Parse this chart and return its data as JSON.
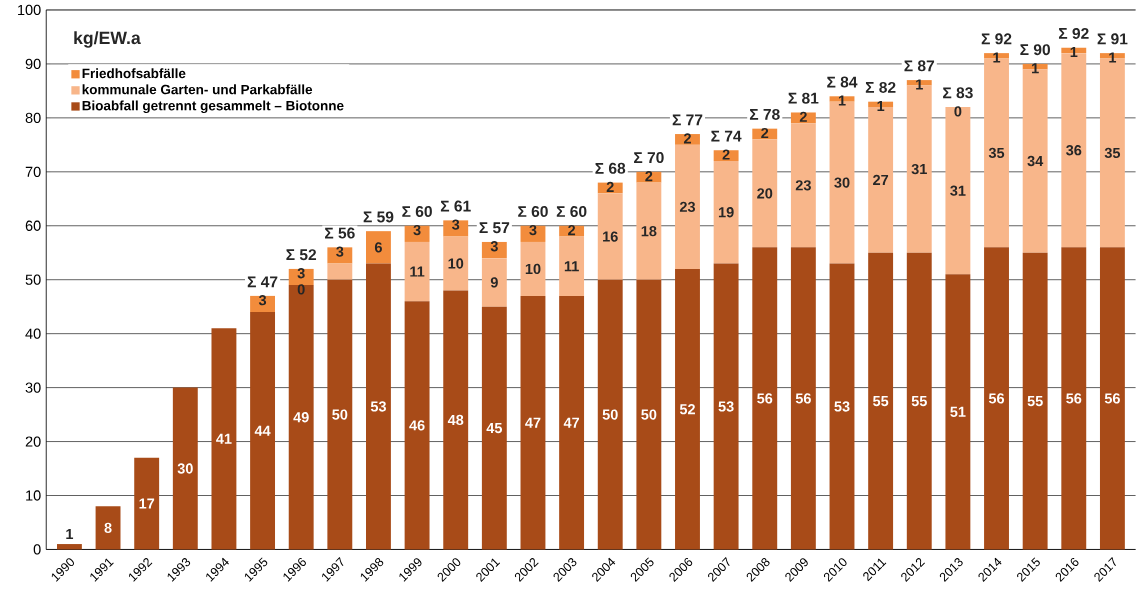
{
  "chart_data": {
    "type": "bar",
    "stacked": true,
    "ylabel": "kg/EW.a",
    "categories": [
      "1990",
      "1991",
      "1992",
      "1993",
      "1994",
      "1995",
      "1996",
      "1997",
      "1998",
      "1999",
      "2000",
      "2001",
      "2002",
      "2003",
      "2004",
      "2005",
      "2006",
      "2007",
      "2008",
      "2009",
      "2010",
      "2011",
      "2012",
      "2013",
      "2014",
      "2015",
      "2016",
      "2017"
    ],
    "series": [
      {
        "name": "Bioabfall getrennt gesammelt – Biotonne",
        "color": "#a84b18",
        "values": [
          1,
          8,
          17,
          30,
          41,
          44,
          49,
          50,
          53,
          46,
          48,
          45,
          47,
          47,
          50,
          50,
          52,
          53,
          56,
          56,
          53,
          55,
          55,
          51,
          56,
          55,
          56,
          56
        ],
        "value_labels": [
          "1",
          "8",
          "17",
          "30",
          "41",
          "44",
          "49",
          "50",
          "53",
          "46",
          "48",
          "45",
          "47",
          "47",
          "50",
          "50",
          "52",
          "53",
          "56",
          "56",
          "53",
          "55",
          "55",
          "51",
          "56",
          "55",
          "56",
          "56"
        ]
      },
      {
        "name": "kommunale Garten- und Parkabfälle",
        "color": "#f8b68a",
        "values": [
          null,
          null,
          null,
          null,
          null,
          null,
          0,
          3,
          null,
          11,
          10,
          9,
          10,
          11,
          16,
          18,
          23,
          19,
          20,
          23,
          30,
          27,
          31,
          31,
          35,
          34,
          36,
          35
        ],
        "value_labels": [
          null,
          null,
          null,
          null,
          null,
          null,
          "0",
          null,
          null,
          "11",
          "10",
          "9",
          "10",
          "11",
          "16",
          "18",
          "23",
          "19",
          "20",
          "23",
          "30",
          "27",
          "31",
          "31",
          "35",
          "34",
          "36",
          "35"
        ]
      },
      {
        "name": "Friedhofsabfälle",
        "color": "#f28c3c",
        "values": [
          null,
          null,
          null,
          null,
          null,
          3,
          3,
          3,
          6,
          3,
          3,
          3,
          3,
          2,
          2,
          2,
          2,
          2,
          2,
          2,
          1,
          1,
          1,
          0,
          1,
          1,
          1,
          1
        ],
        "value_labels": [
          null,
          null,
          null,
          null,
          null,
          "3",
          "3",
          "3",
          "6",
          "3",
          "3",
          "3",
          "3",
          "2",
          "2",
          "2",
          "2",
          "2",
          "2",
          "2",
          "1",
          "1",
          "1",
          "0",
          "1",
          "1",
          "1",
          "1"
        ]
      }
    ],
    "totals": [
      null,
      null,
      null,
      null,
      null,
      "Σ 47",
      "Σ 52",
      "Σ 56",
      "Σ 59",
      "Σ 60",
      "Σ 61",
      "Σ 57",
      "Σ 60",
      "Σ 60",
      "Σ 68",
      "Σ 70",
      "Σ 77",
      "Σ 74",
      "Σ 78",
      "Σ 81",
      "Σ 84",
      "Σ 82",
      "Σ 87",
      "Σ 83",
      "Σ 92",
      "Σ 90",
      "Σ 92",
      "Σ 91"
    ],
    "ylim": [
      0,
      100
    ],
    "yticks": [
      0,
      10,
      20,
      30,
      40,
      50,
      60,
      70,
      80,
      90,
      100
    ],
    "grid": "y",
    "legend": "top left"
  }
}
